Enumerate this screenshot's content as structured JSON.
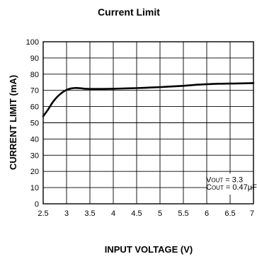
{
  "chart_data": {
    "type": "line",
    "title": "Current Limit",
    "xlabel": "INPUT VOLTAGE (V)",
    "ylabel": "CURRENT LIMIT (mA)",
    "xlim": [
      2.5,
      7
    ],
    "ylim": [
      0,
      100
    ],
    "x_ticks": [
      "2.5",
      "3",
      "3.5",
      "4",
      "4.5",
      "5",
      "5.5",
      "6",
      "6.5",
      "7"
    ],
    "y_ticks": [
      "0",
      "10",
      "20",
      "30",
      "40",
      "50",
      "60",
      "70",
      "80",
      "90",
      "100"
    ],
    "grid": true,
    "series": [
      {
        "color": "#000000",
        "x": [
          2.5,
          2.6,
          2.7,
          2.8,
          2.9,
          3.0,
          3.1,
          3.2,
          3.3,
          3.4,
          3.5,
          3.75,
          4.0,
          4.25,
          4.5,
          4.75,
          5.0,
          5.25,
          5.5,
          5.75,
          6.0,
          6.25,
          6.5,
          6.75,
          7.0
        ],
        "y": [
          54,
          58,
          62.5,
          66,
          68.5,
          70.3,
          71.2,
          71.5,
          71.3,
          71.0,
          70.9,
          70.9,
          71.0,
          71.2,
          71.4,
          71.7,
          72.0,
          72.4,
          72.8,
          73.4,
          73.8,
          74.1,
          74.2,
          74.3,
          74.5
        ]
      }
    ],
    "annotations": [
      {
        "main": "V",
        "sub": "OUT",
        "rest": " = 3.3"
      },
      {
        "main": "C",
        "sub": "OUT",
        "rest": " = 0.47µF"
      }
    ]
  }
}
